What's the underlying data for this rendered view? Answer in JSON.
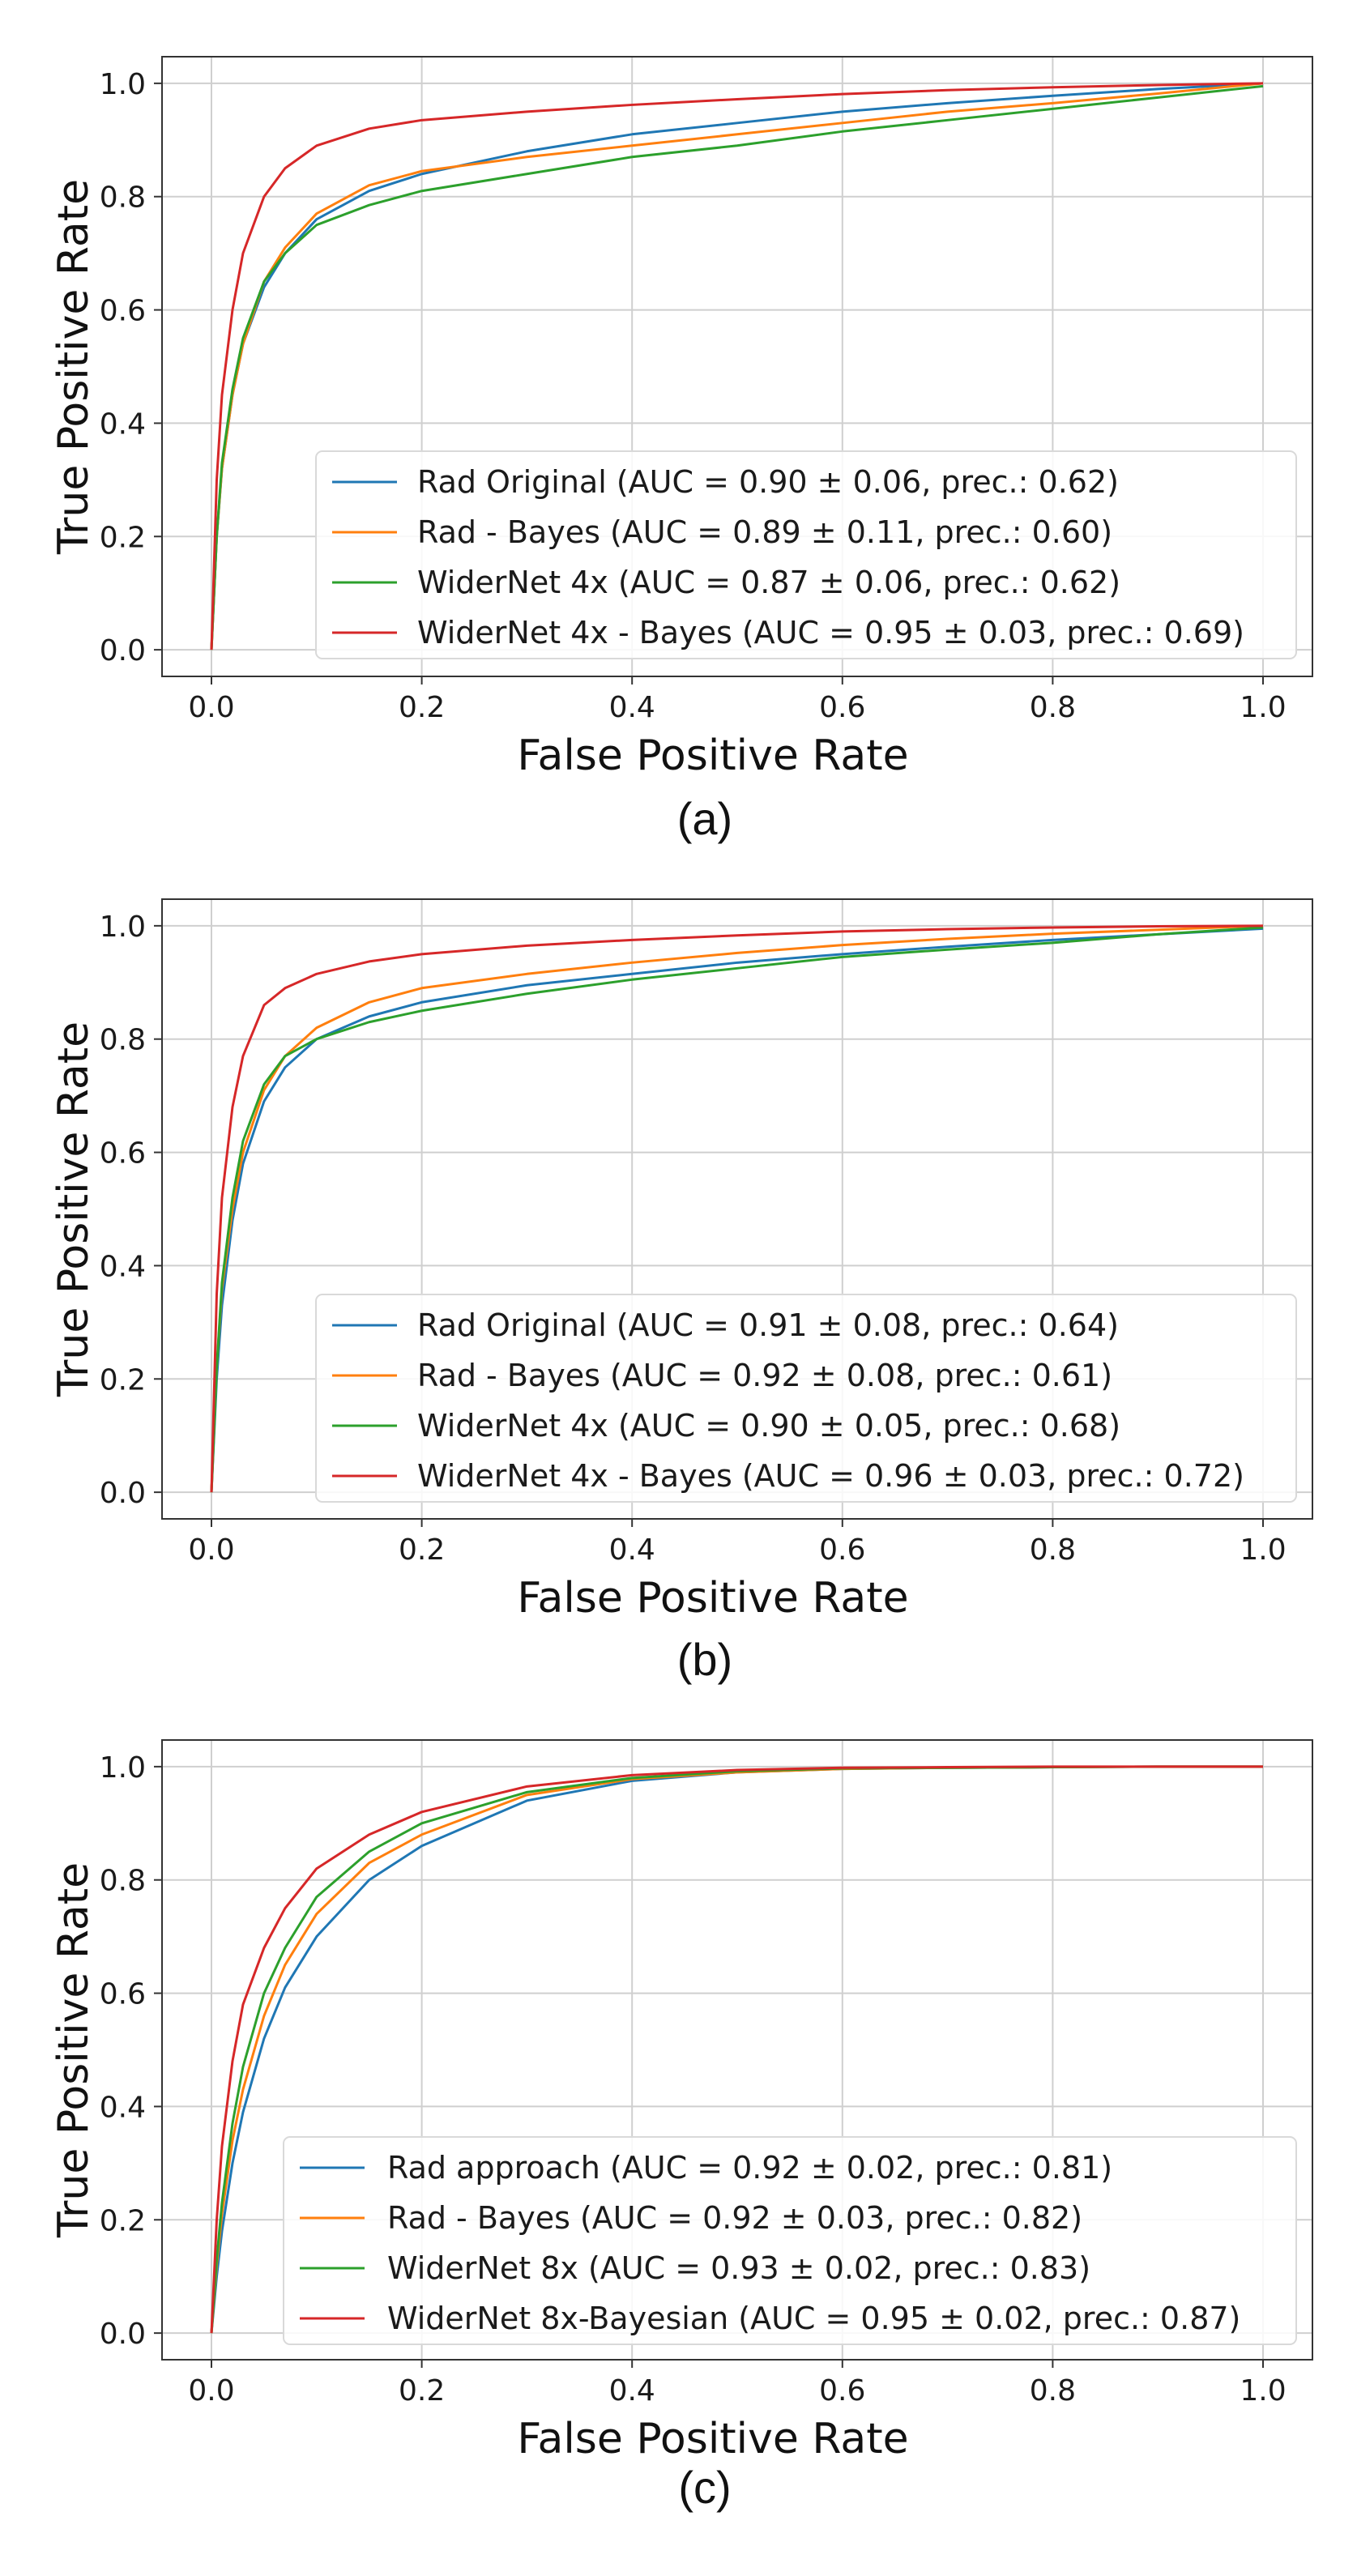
{
  "colors": {
    "blue": "#1f77b4",
    "orange": "#ff7f0e",
    "green": "#2ca02c",
    "red": "#d62728",
    "grid": "#cfcfcf",
    "frame": "#333333"
  },
  "chart_data": [
    {
      "type": "line",
      "caption": "(a)",
      "xlabel": "False Positive Rate",
      "ylabel": "True Positive Rate",
      "xlim": [
        0,
        1
      ],
      "ylim": [
        0,
        1
      ],
      "xticks": [
        0.0,
        0.2,
        0.4,
        0.6,
        0.8,
        1.0
      ],
      "yticks": [
        0.0,
        0.2,
        0.4,
        0.6,
        0.8,
        1.0
      ],
      "xtick_labels": [
        "0.0",
        "0.2",
        "0.4",
        "0.6",
        "0.8",
        "1.0"
      ],
      "ytick_labels": [
        "0.0",
        "0.2",
        "0.4",
        "0.6",
        "0.8",
        "1.0"
      ],
      "grid": true,
      "legend_position": "lower-right",
      "series": [
        {
          "name": "Rad Original (AUC = 0.90 ± 0.06, prec.: 0.62)",
          "color": "blue",
          "x": [
            0,
            0.005,
            0.01,
            0.02,
            0.03,
            0.05,
            0.07,
            0.1,
            0.15,
            0.2,
            0.3,
            0.4,
            0.5,
            0.6,
            0.7,
            0.8,
            0.9,
            1.0
          ],
          "y": [
            0,
            0.2,
            0.32,
            0.45,
            0.54,
            0.64,
            0.7,
            0.76,
            0.81,
            0.84,
            0.88,
            0.91,
            0.93,
            0.95,
            0.965,
            0.978,
            0.99,
            1.0
          ]
        },
        {
          "name": "Rad - Bayes (AUC = 0.89 ± 0.11, prec.: 0.60)",
          "color": "orange",
          "x": [
            0,
            0.005,
            0.01,
            0.02,
            0.03,
            0.05,
            0.07,
            0.1,
            0.15,
            0.2,
            0.3,
            0.4,
            0.5,
            0.6,
            0.7,
            0.8,
            0.9,
            1.0
          ],
          "y": [
            0,
            0.2,
            0.32,
            0.45,
            0.54,
            0.65,
            0.71,
            0.77,
            0.82,
            0.845,
            0.87,
            0.89,
            0.91,
            0.93,
            0.95,
            0.965,
            0.982,
            1.0
          ]
        },
        {
          "name": "WiderNet 4x (AUC = 0.87 ± 0.06, prec.: 0.62)",
          "color": "green",
          "x": [
            0,
            0.005,
            0.01,
            0.02,
            0.03,
            0.05,
            0.07,
            0.1,
            0.15,
            0.2,
            0.3,
            0.4,
            0.5,
            0.6,
            0.7,
            0.8,
            0.9,
            1.0
          ],
          "y": [
            0,
            0.2,
            0.33,
            0.46,
            0.55,
            0.65,
            0.7,
            0.75,
            0.785,
            0.81,
            0.84,
            0.87,
            0.89,
            0.915,
            0.935,
            0.955,
            0.975,
            0.995
          ]
        },
        {
          "name": "WiderNet 4x - Bayes (AUC = 0.95 ± 0.03, prec.: 0.69)",
          "color": "red",
          "x": [
            0,
            0.005,
            0.01,
            0.02,
            0.03,
            0.05,
            0.07,
            0.1,
            0.15,
            0.2,
            0.3,
            0.4,
            0.5,
            0.6,
            0.7,
            0.8,
            0.9,
            1.0
          ],
          "y": [
            0,
            0.3,
            0.45,
            0.6,
            0.7,
            0.8,
            0.85,
            0.89,
            0.92,
            0.935,
            0.95,
            0.962,
            0.972,
            0.981,
            0.988,
            0.993,
            0.997,
            1.0
          ]
        }
      ]
    },
    {
      "type": "line",
      "caption": "(b)",
      "xlabel": "False Positive Rate",
      "ylabel": "True Positive Rate",
      "xlim": [
        0,
        1
      ],
      "ylim": [
        0,
        1
      ],
      "xticks": [
        0.0,
        0.2,
        0.4,
        0.6,
        0.8,
        1.0
      ],
      "yticks": [
        0.0,
        0.2,
        0.4,
        0.6,
        0.8,
        1.0
      ],
      "xtick_labels": [
        "0.0",
        "0.2",
        "0.4",
        "0.6",
        "0.8",
        "1.0"
      ],
      "ytick_labels": [
        "0.0",
        "0.2",
        "0.4",
        "0.6",
        "0.8",
        "1.0"
      ],
      "grid": true,
      "legend_position": "lower-right",
      "series": [
        {
          "name": "Rad Original (AUC = 0.91 ± 0.08, prec.: 0.64)",
          "color": "blue",
          "x": [
            0,
            0.005,
            0.01,
            0.02,
            0.03,
            0.05,
            0.07,
            0.1,
            0.15,
            0.2,
            0.3,
            0.4,
            0.5,
            0.6,
            0.7,
            0.8,
            0.9,
            1.0
          ],
          "y": [
            0,
            0.2,
            0.33,
            0.48,
            0.58,
            0.69,
            0.75,
            0.8,
            0.84,
            0.865,
            0.895,
            0.915,
            0.935,
            0.95,
            0.963,
            0.975,
            0.985,
            0.995
          ]
        },
        {
          "name": "Rad - Bayes (AUC = 0.92 ± 0.08, prec.: 0.61)",
          "color": "orange",
          "x": [
            0,
            0.005,
            0.01,
            0.02,
            0.03,
            0.05,
            0.07,
            0.1,
            0.15,
            0.2,
            0.3,
            0.4,
            0.5,
            0.6,
            0.7,
            0.8,
            0.9,
            1.0
          ],
          "y": [
            0,
            0.22,
            0.36,
            0.5,
            0.6,
            0.71,
            0.77,
            0.82,
            0.865,
            0.89,
            0.915,
            0.935,
            0.952,
            0.966,
            0.977,
            0.986,
            0.993,
            1.0
          ]
        },
        {
          "name": "WiderNet 4x (AUC = 0.90 ± 0.05, prec.: 0.68)",
          "color": "green",
          "x": [
            0,
            0.005,
            0.01,
            0.02,
            0.03,
            0.05,
            0.07,
            0.1,
            0.15,
            0.2,
            0.3,
            0.4,
            0.5,
            0.6,
            0.7,
            0.8,
            0.9,
            1.0
          ],
          "y": [
            0,
            0.22,
            0.37,
            0.52,
            0.62,
            0.72,
            0.77,
            0.8,
            0.83,
            0.85,
            0.88,
            0.905,
            0.925,
            0.945,
            0.958,
            0.97,
            0.985,
            0.997
          ]
        },
        {
          "name": "WiderNet 4x - Bayes (AUC = 0.96 ± 0.03, prec.: 0.72)",
          "color": "red",
          "x": [
            0,
            0.005,
            0.01,
            0.02,
            0.03,
            0.05,
            0.07,
            0.1,
            0.15,
            0.2,
            0.3,
            0.4,
            0.5,
            0.6,
            0.7,
            0.8,
            0.9,
            1.0
          ],
          "y": [
            0,
            0.35,
            0.52,
            0.68,
            0.77,
            0.86,
            0.89,
            0.915,
            0.937,
            0.95,
            0.965,
            0.975,
            0.983,
            0.99,
            0.994,
            0.997,
            0.999,
            1.0
          ]
        }
      ]
    },
    {
      "type": "line",
      "caption": "(c)",
      "xlabel": "False Positive Rate",
      "ylabel": "True Positive Rate",
      "xlim": [
        0,
        1
      ],
      "ylim": [
        0,
        1
      ],
      "xticks": [
        0.0,
        0.2,
        0.4,
        0.6,
        0.8,
        1.0
      ],
      "yticks": [
        0.0,
        0.2,
        0.4,
        0.6,
        0.8,
        1.0
      ],
      "xtick_labels": [
        "0.0",
        "0.2",
        "0.4",
        "0.6",
        "0.8",
        "1.0"
      ],
      "ytick_labels": [
        "0.0",
        "0.2",
        "0.4",
        "0.6",
        "0.8",
        "1.0"
      ],
      "grid": true,
      "legend_position": "lower-right",
      "series": [
        {
          "name": "Rad approach (AUC = 0.92 ± 0.02, prec.: 0.81)",
          "color": "blue",
          "x": [
            0,
            0.005,
            0.01,
            0.02,
            0.03,
            0.05,
            0.07,
            0.1,
            0.15,
            0.2,
            0.3,
            0.4,
            0.5,
            0.6,
            0.7,
            0.8,
            0.9,
            1.0
          ],
          "y": [
            0,
            0.1,
            0.18,
            0.3,
            0.39,
            0.52,
            0.61,
            0.7,
            0.8,
            0.86,
            0.94,
            0.975,
            0.99,
            0.996,
            0.998,
            0.999,
            1.0,
            1.0
          ]
        },
        {
          "name": "Rad - Bayes (AUC = 0.92 ± 0.03, prec.: 0.82)",
          "color": "orange",
          "x": [
            0,
            0.005,
            0.01,
            0.02,
            0.03,
            0.05,
            0.07,
            0.1,
            0.15,
            0.2,
            0.3,
            0.4,
            0.5,
            0.6,
            0.7,
            0.8,
            0.9,
            1.0
          ],
          "y": [
            0,
            0.12,
            0.21,
            0.34,
            0.43,
            0.56,
            0.65,
            0.74,
            0.83,
            0.88,
            0.95,
            0.978,
            0.99,
            0.996,
            0.998,
            0.999,
            1.0,
            1.0
          ]
        },
        {
          "name": "WiderNet 8x (AUC = 0.93 ± 0.02, prec.: 0.83)",
          "color": "green",
          "x": [
            0,
            0.005,
            0.01,
            0.02,
            0.03,
            0.05,
            0.07,
            0.1,
            0.15,
            0.2,
            0.3,
            0.4,
            0.5,
            0.6,
            0.7,
            0.8,
            0.9,
            1.0
          ],
          "y": [
            0,
            0.13,
            0.23,
            0.37,
            0.47,
            0.6,
            0.68,
            0.77,
            0.85,
            0.9,
            0.955,
            0.98,
            0.992,
            0.997,
            0.998,
            0.999,
            1.0,
            1.0
          ]
        },
        {
          "name": "WiderNet 8x-Bayesian (AUC = 0.95 ± 0.02, prec.: 0.87)",
          "color": "red",
          "x": [
            0,
            0.005,
            0.01,
            0.02,
            0.03,
            0.05,
            0.07,
            0.1,
            0.15,
            0.2,
            0.3,
            0.4,
            0.5,
            0.6,
            0.7,
            0.8,
            0.9,
            1.0
          ],
          "y": [
            0,
            0.2,
            0.33,
            0.48,
            0.58,
            0.68,
            0.75,
            0.82,
            0.88,
            0.92,
            0.965,
            0.985,
            0.994,
            0.998,
            0.999,
            1.0,
            1.0,
            1.0
          ]
        }
      ]
    }
  ]
}
